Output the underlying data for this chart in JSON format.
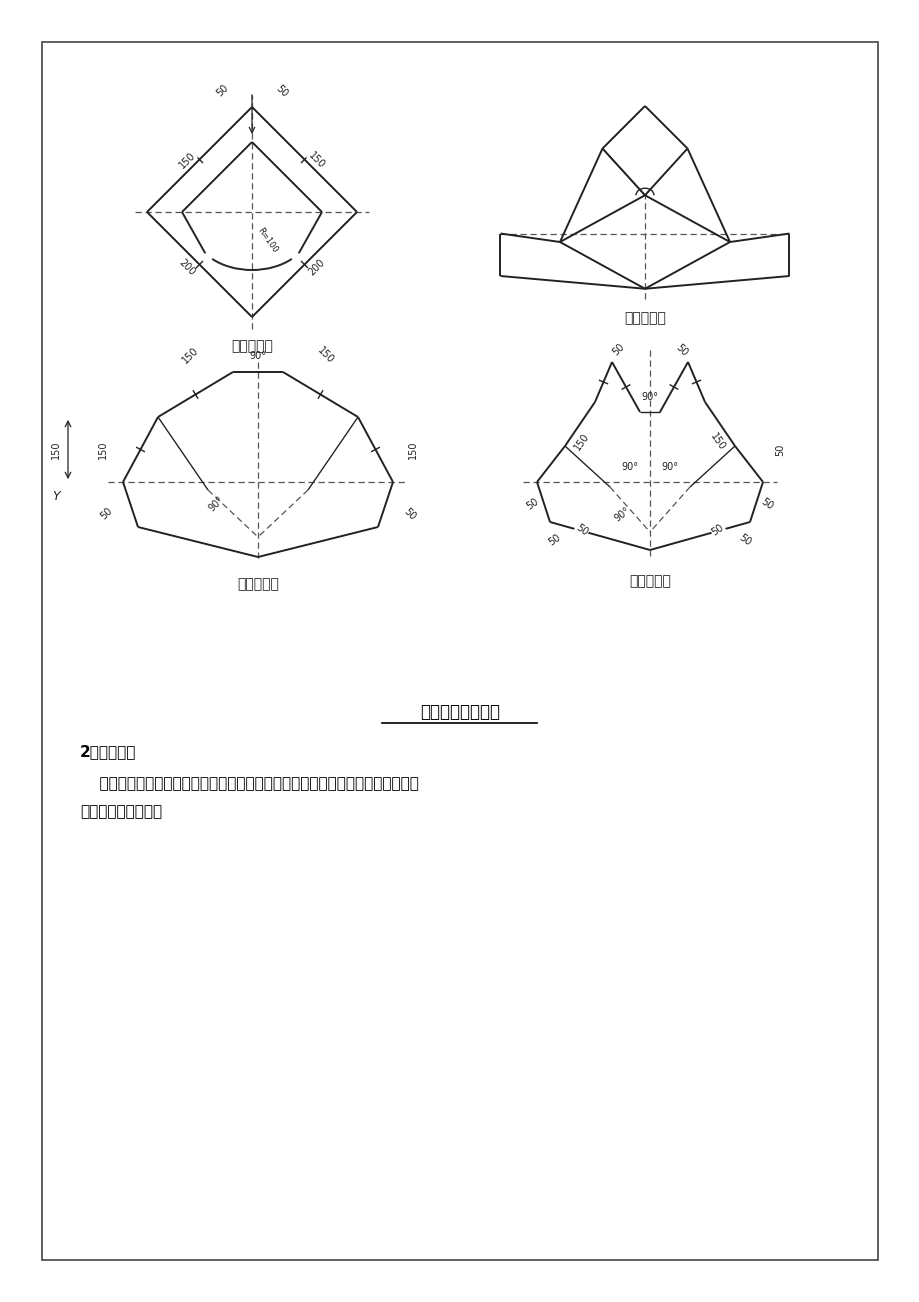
{
  "page_bg": "#ffffff",
  "line_color": "#333333",
  "title_text": "三维阴阳角处理图",
  "section_title": "2）桩头处理",
  "body_line1": "    采用渗透基结晶涂刷桩头两遍，再在基层涂刷聚合物防水砂浆，铺贴卷材，最后",
  "body_line2": "用密封膏进行密封。",
  "label1": "阳角附加图",
  "label2": "阳角组体图",
  "label3": "阴角组体图",
  "label4": "阴角成型图",
  "font_cjk": "SimHei",
  "font_fallback": "DejaVu Sans"
}
